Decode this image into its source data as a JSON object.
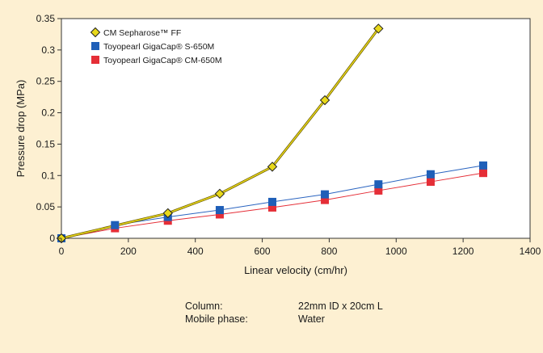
{
  "chart_data": {
    "type": "line",
    "xlabel": "Linear velocity (cm/hr)",
    "ylabel": "Pressure drop (MPa)",
    "xlim": [
      0,
      1400
    ],
    "ylim": [
      0,
      0.35
    ],
    "xticks": [
      0,
      200,
      400,
      600,
      800,
      1000,
      1200,
      1400
    ],
    "yticks": [
      0,
      0.05,
      0.1,
      0.15,
      0.2,
      0.25,
      0.3,
      0.35
    ],
    "grid": false,
    "legend_position": "top-left",
    "series": [
      {
        "name": "CM Sepharose™ FF",
        "marker": "diamond",
        "color": "#e8d81a",
        "line_color": "#b8a70a",
        "x": [
          0,
          318,
          473,
          630,
          787,
          947
        ],
        "y": [
          0,
          0.04,
          0.071,
          0.114,
          0.22,
          0.334
        ]
      },
      {
        "name": "Toyopearl GigaCap® S-650M",
        "marker": "square",
        "color": "#1f5fb8",
        "line_color": "#2a64c0",
        "x": [
          0,
          160,
          318,
          473,
          630,
          787,
          947,
          1103,
          1260
        ],
        "y": [
          0,
          0.021,
          0.034,
          0.045,
          0.058,
          0.07,
          0.086,
          0.102,
          0.116
        ]
      },
      {
        "name": "Toyopearl GigaCap® CM-650M",
        "marker": "square",
        "color": "#e52e37",
        "line_color": "#e52e37",
        "x": [
          0,
          160,
          318,
          473,
          630,
          787,
          947,
          1103,
          1260
        ],
        "y": [
          0,
          0.016,
          0.028,
          0.038,
          0.049,
          0.061,
          0.076,
          0.09,
          0.104
        ]
      }
    ]
  },
  "conditions": {
    "column_label": "Column:",
    "column_value": "22mm ID x 20cm L",
    "mobile_phase_label": "Mobile phase:",
    "mobile_phase_value": "Water"
  }
}
